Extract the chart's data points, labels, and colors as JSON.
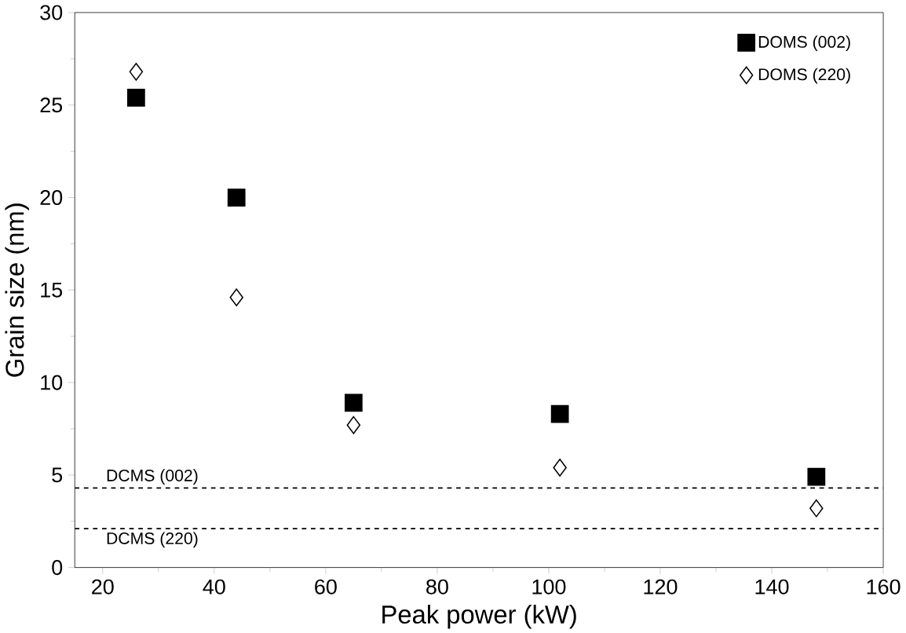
{
  "chart_data": {
    "type": "scatter",
    "xlabel": "Peak power (kW)",
    "ylabel": "Grain size (nm)",
    "x": [
      26,
      44,
      65,
      102,
      148
    ],
    "series": [
      {
        "name": "DOMS (002)",
        "color": "#000000",
        "marker": "square",
        "values": [
          25.4,
          20.0,
          8.9,
          8.3,
          4.9
        ]
      },
      {
        "name": "DOMS (220)",
        "color": "#000000",
        "marker": "diamond",
        "values": [
          26.8,
          14.6,
          7.7,
          5.4,
          3.2
        ]
      }
    ],
    "xlim": [
      15,
      160
    ],
    "ylim": [
      0,
      30
    ],
    "xticks": [
      20,
      40,
      60,
      80,
      100,
      120,
      140,
      160
    ],
    "yticks": [
      0,
      5,
      10,
      15,
      20,
      25,
      30
    ],
    "ref_lines": [
      {
        "axis": "y",
        "value": 4.3,
        "label": "DCMS (002)",
        "line_style": "dashed",
        "color": "#000000"
      },
      {
        "axis": "y",
        "value": 2.1,
        "label": "DCMS (220)",
        "line_style": "dashed",
        "color": "#000000"
      }
    ],
    "legend": "top right",
    "grid": false
  }
}
